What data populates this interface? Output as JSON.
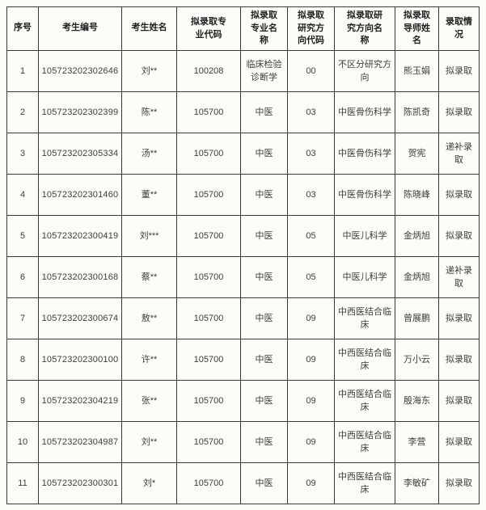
{
  "page": {
    "background_color": "#fcfbf8",
    "border_color": "#3a3a3a",
    "header_text_color": "#1f1f1f",
    "body_text_color": "#3d3d3d"
  },
  "table": {
    "col_keys": [
      "index",
      "candidate_id",
      "candidate_name",
      "major_code",
      "major_name",
      "direction_code",
      "direction_name",
      "supervisor_name",
      "admission_status"
    ],
    "headers": [
      "序号",
      "考生编号",
      "考生姓名",
      "拟录取专业代码",
      "拟录取专业名称",
      "拟录取研究方向代码",
      "拟录取研究方向名称",
      "拟录取导师姓名",
      "录取情况"
    ],
    "rows": [
      [
        "1",
        "105723202302646",
        "刘**",
        "100208",
        "临床检验诊断学",
        "00",
        "不区分研究方向",
        "熊玉娟",
        "拟录取"
      ],
      [
        "2",
        "105723202302399",
        "陈**",
        "105700",
        "中医",
        "03",
        "中医骨伤科学",
        "陈凯奇",
        "拟录取"
      ],
      [
        "3",
        "105723202305334",
        "汤**",
        "105700",
        "中医",
        "03",
        "中医骨伤科学",
        "贺宪",
        "递补录取"
      ],
      [
        "4",
        "105723202301460",
        "董**",
        "105700",
        "中医",
        "03",
        "中医骨伤科学",
        "陈晓峰",
        "拟录取"
      ],
      [
        "5",
        "105723202300419",
        "刘***",
        "105700",
        "中医",
        "05",
        "中医儿科学",
        "金炳旭",
        "拟录取"
      ],
      [
        "6",
        "105723202300168",
        "蔡**",
        "105700",
        "中医",
        "05",
        "中医儿科学",
        "金炳旭",
        "递补录取"
      ],
      [
        "7",
        "105723202300674",
        "敖**",
        "105700",
        "中医",
        "09",
        "中西医结合临床",
        "曾展鹏",
        "拟录取"
      ],
      [
        "8",
        "105723202300100",
        "许**",
        "105700",
        "中医",
        "09",
        "中西医结合临床",
        "万小云",
        "拟录取"
      ],
      [
        "9",
        "105723202304219",
        "张**",
        "105700",
        "中医",
        "09",
        "中西医结合临床",
        "殷海东",
        "拟录取"
      ],
      [
        "10",
        "105723202304987",
        "刘**",
        "105700",
        "中医",
        "09",
        "中西医结合临床",
        "李营",
        "拟录取"
      ],
      [
        "11",
        "105723202300301",
        "刘*",
        "105700",
        "中医",
        "09",
        "中西医结合临床",
        "李敏矿",
        "拟录取"
      ]
    ]
  }
}
